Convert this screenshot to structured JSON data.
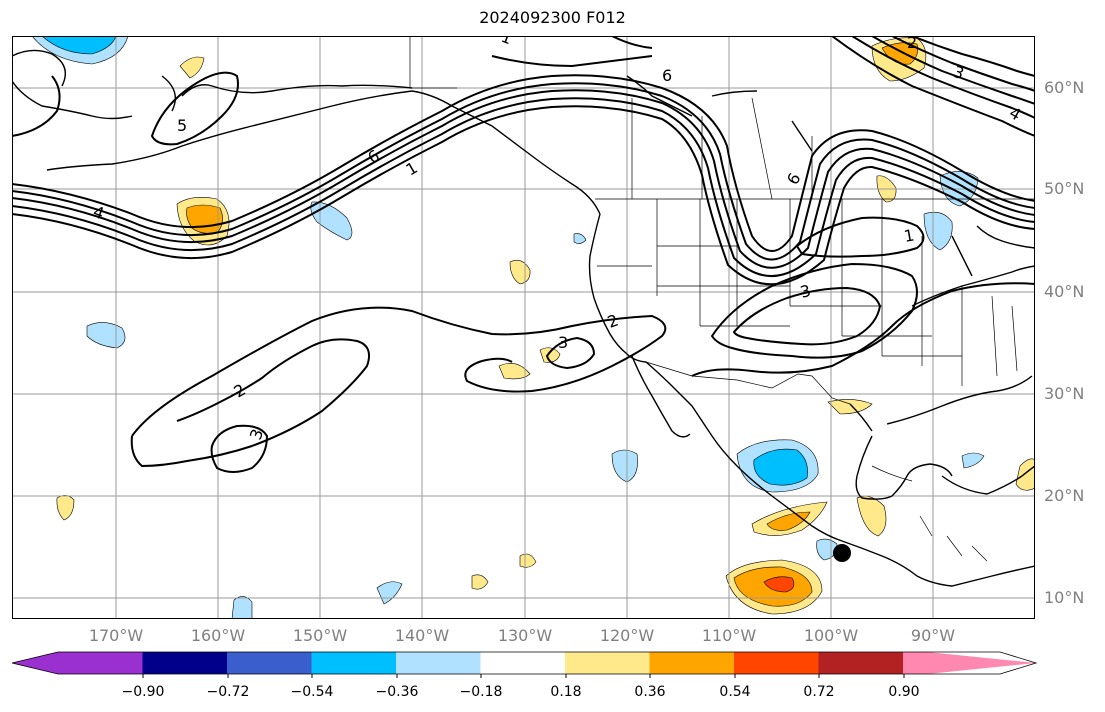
{
  "title": "2024092300 F012",
  "latitude_labels": [
    "60°N",
    "50°N",
    "40°N",
    "30°N",
    "20°N",
    "10°N"
  ],
  "longitude_labels": [
    "170°W",
    "160°W",
    "150°W",
    "140°W",
    "130°W",
    "120°W",
    "110°W",
    "100°W",
    "90°W"
  ],
  "contour_labels": [
    "4",
    "5",
    "6",
    "6",
    "1",
    "1",
    "3",
    "2",
    "3",
    "2",
    "3",
    "1",
    "6",
    "2",
    "3",
    "4"
  ],
  "colorbar": {
    "tick_labels": [
      "−0.90",
      "−0.72",
      "−0.54",
      "−0.36",
      "−0.18",
      "0.18",
      "0.36",
      "0.54",
      "0.72",
      "0.90"
    ],
    "colors": [
      "#9b30d0",
      "#00008b",
      "#3a5fcd",
      "#00bfff",
      "#b0e2ff",
      "#ffffff",
      "#ffe98a",
      "#ffa500",
      "#ff4500",
      "#b22222",
      "#ff88b0"
    ]
  },
  "storm_marker": {
    "lon": -99.8,
    "lat": 14.3
  }
}
